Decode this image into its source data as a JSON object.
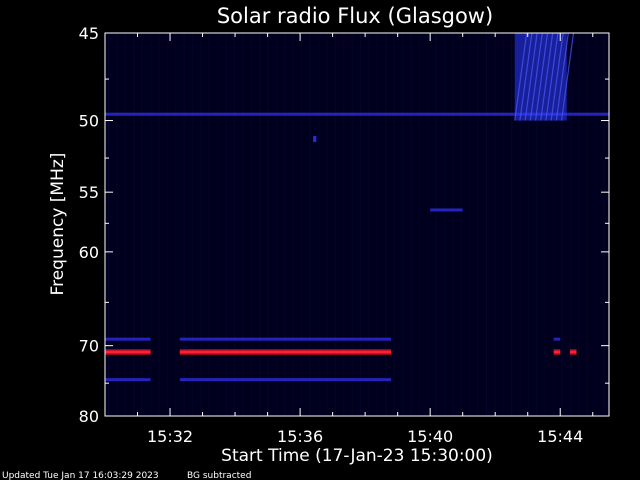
{
  "colors": {
    "background": "#000000",
    "plot_background": "#00001e",
    "axis": "#ffffff",
    "emission_band": "#2a2ad8",
    "strong_emission": "#ff1f3a",
    "burst": "#2b3bff"
  },
  "footer": {
    "updated": "Updated Tue Jan 17 16:03:29 2023",
    "note": "BG subtracted"
  },
  "chart_data": {
    "type": "heatmap",
    "title": "Solar radio Flux (Glasgow)",
    "xlabel": "Start Time (17-Jan-23 15:30:00)",
    "ylabel": "Frequency [MHz]",
    "x_unit": "minutes after 15:30:00",
    "xlim": [
      0.0,
      15.5
    ],
    "ylim": [
      80,
      45
    ],
    "y_scale": "reciprocal",
    "grid": false,
    "x_ticks": [
      {
        "value": 2,
        "label": "15:32"
      },
      {
        "value": 6,
        "label": "15:36"
      },
      {
        "value": 10,
        "label": "15:40"
      },
      {
        "value": 14,
        "label": "15:44"
      }
    ],
    "y_ticks": [
      {
        "value": 45,
        "label": "45"
      },
      {
        "value": 50,
        "label": "50"
      },
      {
        "value": 55,
        "label": "55"
      },
      {
        "value": 60,
        "label": "60"
      },
      {
        "value": 70,
        "label": "70"
      },
      {
        "value": 80,
        "label": "80"
      }
    ],
    "features": [
      {
        "kind": "strong_emission",
        "freq_mhz": 70.8,
        "segments": [
          [
            0.0,
            1.4
          ],
          [
            2.3,
            8.8
          ],
          [
            13.8,
            14.0
          ],
          [
            14.3,
            14.5
          ]
        ]
      },
      {
        "kind": "emission_band",
        "freq_mhz": 69.2,
        "segments": [
          [
            0.0,
            1.4
          ],
          [
            2.3,
            8.8
          ],
          [
            13.8,
            14.0
          ]
        ]
      },
      {
        "kind": "emission_band",
        "freq_mhz": 74.5,
        "segments": [
          [
            0.0,
            1.4
          ],
          [
            2.3,
            8.8
          ]
        ]
      },
      {
        "kind": "emission_band",
        "freq_mhz": 49.6,
        "segments": [
          [
            0.0,
            15.5
          ]
        ]
      },
      {
        "kind": "emission_band",
        "freq_mhz": 56.4,
        "segments": [
          [
            10.0,
            11.0
          ]
        ]
      },
      {
        "kind": "spot",
        "freq_mhz": 51.2,
        "segments": [
          [
            6.4,
            6.5
          ]
        ]
      },
      {
        "kind": "burst",
        "freq_range_mhz": [
          45,
          50
        ],
        "segments": [
          [
            12.6,
            14.2
          ]
        ]
      }
    ]
  }
}
